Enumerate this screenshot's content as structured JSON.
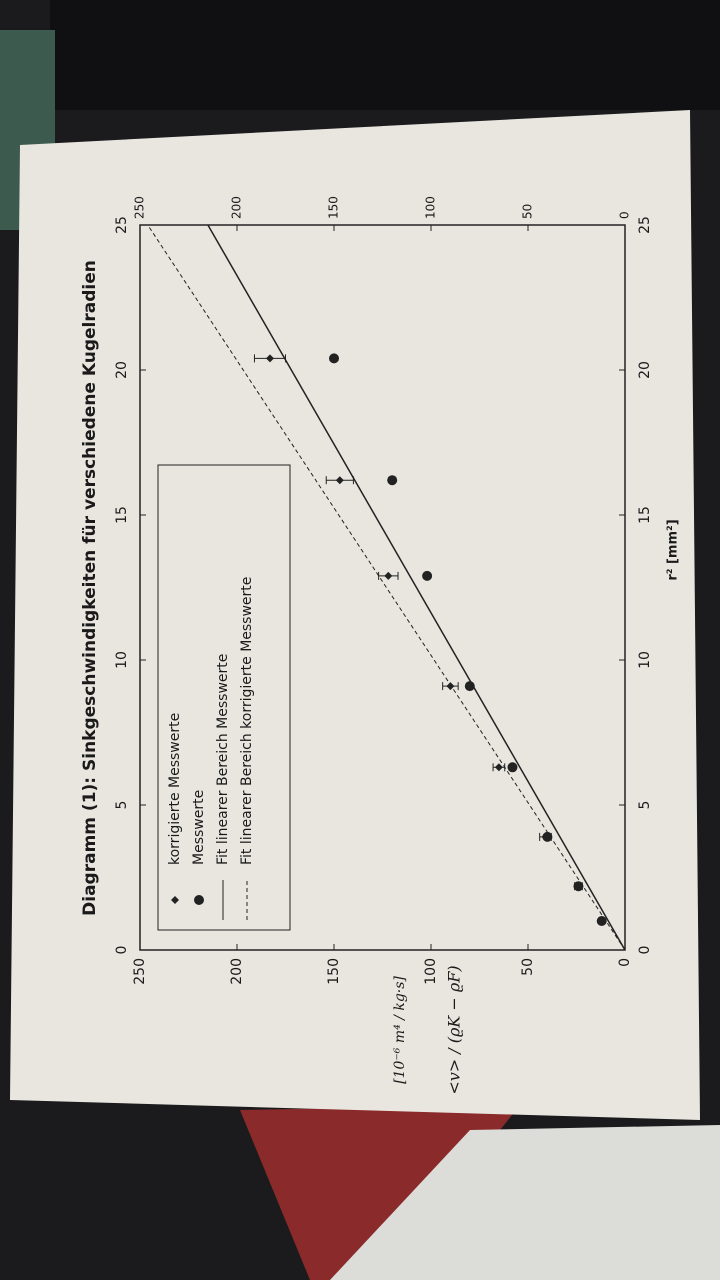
{
  "chart_data": {
    "type": "scatter",
    "title": "Diagramm (1): Sinkgeschwindigkeiten für verschiedene Kugelradien",
    "xlabel": "r² [mm²]",
    "ylabel": "<v> / (ϱK − ϱF)",
    "yunit": "[10⁻⁶ m⁴ / kg·s]",
    "xlim": [
      0,
      25
    ],
    "xticks": [
      0,
      5,
      10,
      15,
      20,
      25
    ],
    "ylim": [
      0,
      250
    ],
    "yticks": [
      0,
      50,
      100,
      150,
      200,
      250
    ],
    "series": [
      {
        "name": "korrigierte Messwerte",
        "style": "diamond",
        "color": "#222222",
        "x": [
          1.0,
          2.2,
          3.9,
          6.3,
          9.1,
          12.9,
          16.2,
          20.4
        ],
        "values": [
          12,
          24,
          41,
          65,
          90,
          122,
          147,
          183
        ],
        "errors": [
          1,
          2,
          3,
          3,
          4,
          5,
          7,
          8
        ]
      },
      {
        "name": "Messwerte",
        "style": "circle",
        "color": "#222222",
        "x": [
          1.0,
          2.2,
          3.9,
          6.3,
          9.1,
          12.9,
          16.2,
          20.4
        ],
        "values": [
          12,
          24,
          40,
          58,
          80,
          102,
          120,
          150
        ]
      },
      {
        "name": "Fit linearer Bereich Messwerte",
        "style": "solid",
        "color": "#222222",
        "x": [
          0,
          25
        ],
        "values": [
          0,
          215
        ]
      },
      {
        "name": "Fit linearer Bereich korrigierte Messwerte",
        "style": "dashed",
        "color": "#222222",
        "x": [
          0,
          25
        ],
        "values": [
          0,
          246
        ]
      }
    ]
  }
}
